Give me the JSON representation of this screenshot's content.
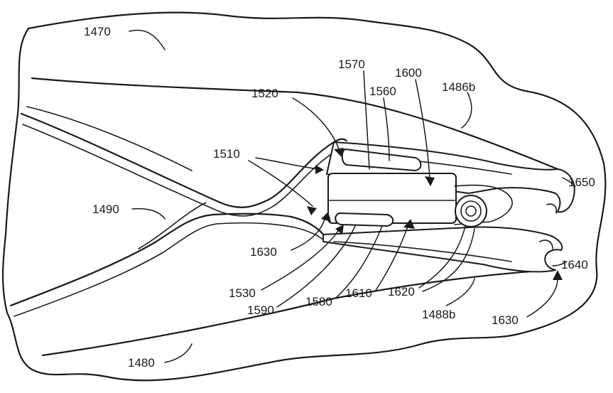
{
  "labels": {
    "l1470": "1470",
    "l1570": "1570",
    "l1600": "1600",
    "l1486b": "1486b",
    "l1520": "1520",
    "l1560": "1560",
    "l1510": "1510",
    "l1650": "1650",
    "l1490": "1490",
    "l1630a": "1630",
    "l1640": "1640",
    "l1530": "1530",
    "l1590": "1590",
    "l1580": "1580",
    "l1610": "1610",
    "l1620": "1620",
    "l1488b": "1488b",
    "l1630b": "1630",
    "l1480": "1480"
  }
}
